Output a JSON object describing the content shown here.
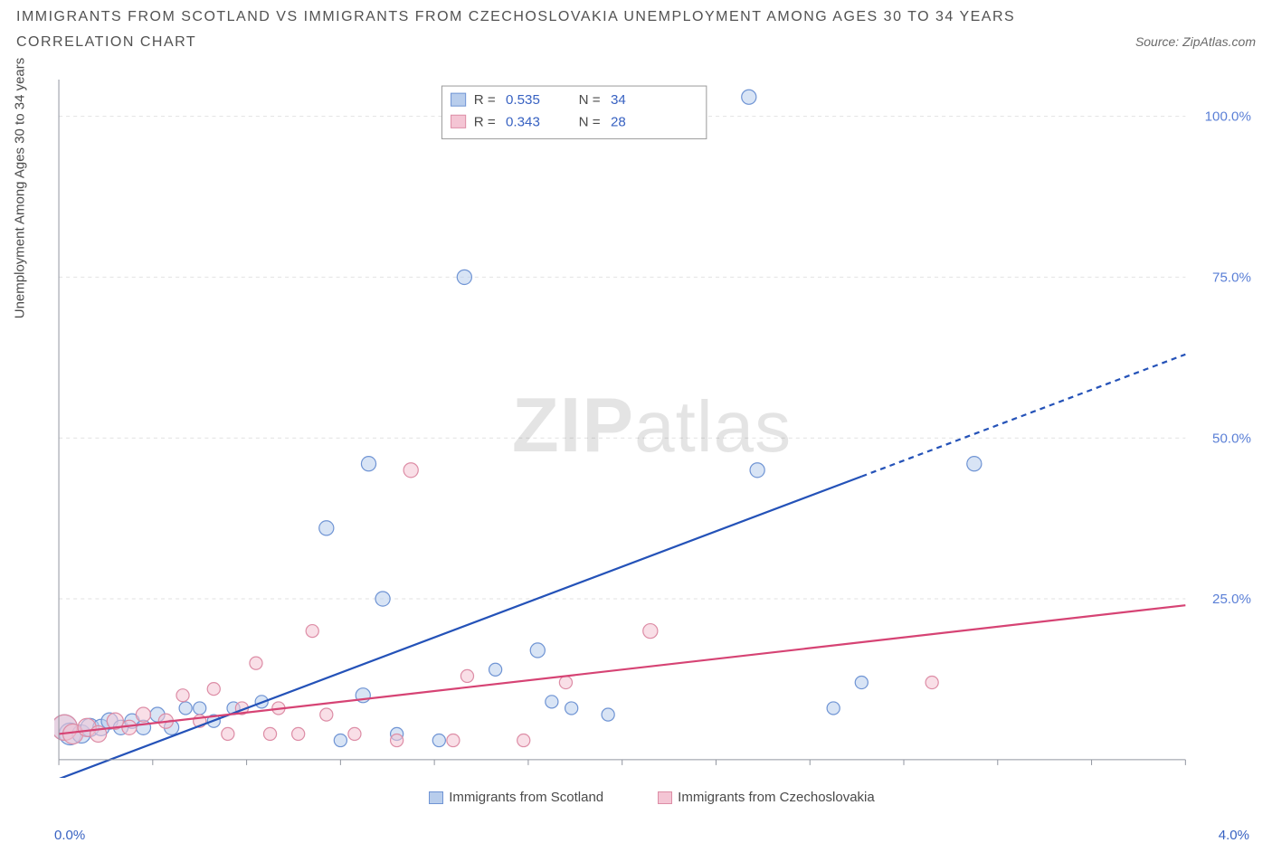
{
  "title": "IMMIGRANTS FROM SCOTLAND VS IMMIGRANTS FROM CZECHOSLOVAKIA UNEMPLOYMENT AMONG AGES 30 TO 34 YEARS",
  "subtitle": "CORRELATION CHART",
  "source": "Source: ZipAtlas.com",
  "y_axis_label": "Unemployment Among Ages 30 to 34 years",
  "watermark_zip": "ZIP",
  "watermark_atlas": "atlas",
  "chart": {
    "type": "scatter",
    "background_color": "#ffffff",
    "grid_color": "#e2e2e2",
    "axis_color": "#9296a0",
    "tick_color": "#9296a0",
    "x_min": 0.0,
    "x_max": 4.0,
    "x_label_min": "0.0%",
    "x_label_max": "4.0%",
    "x_label_color": "#3862c2",
    "y_min": 0,
    "y_max": 105,
    "y_ticks": [
      25,
      50,
      75,
      100
    ],
    "y_tick_labels": [
      "25.0%",
      "50.0%",
      "75.0%",
      "100.0%"
    ],
    "y_tick_color": "#5a7fd6",
    "inner_legend": {
      "border_color": "#9a9a9a",
      "bg": "#ffffff",
      "rows": [
        {
          "swatch_fill": "#b8cdec",
          "swatch_stroke": "#6f94d4",
          "r_label": "R = ",
          "r_val": "0.535",
          "n_label": "N = ",
          "n_val": "34"
        },
        {
          "swatch_fill": "#f4c5d4",
          "swatch_stroke": "#dd8da6",
          "r_label": "R = ",
          "r_val": "0.343",
          "n_label": "N = ",
          "n_val": "28"
        }
      ],
      "label_color": "#4a4a4a",
      "value_color": "#3862c2"
    },
    "series": [
      {
        "name": "Immigrants from Scotland",
        "fill": "#b8cdec",
        "stroke": "#6f94d4",
        "fill_opacity": 0.55,
        "marker_r": 8,
        "trend": {
          "stroke": "#2452b8",
          "width": 2.2,
          "y_at_xmin": -3,
          "y_at_xmax": 63,
          "solid_until_x": 2.85
        },
        "points": [
          {
            "x": 0.02,
            "y": 5,
            "r": 14
          },
          {
            "x": 0.04,
            "y": 4,
            "r": 12
          },
          {
            "x": 0.08,
            "y": 4,
            "r": 10
          },
          {
            "x": 0.11,
            "y": 5,
            "r": 10
          },
          {
            "x": 0.15,
            "y": 5,
            "r": 9
          },
          {
            "x": 0.18,
            "y": 6,
            "r": 9
          },
          {
            "x": 0.22,
            "y": 5,
            "r": 8
          },
          {
            "x": 0.26,
            "y": 6,
            "r": 8
          },
          {
            "x": 0.3,
            "y": 5,
            "r": 8
          },
          {
            "x": 0.35,
            "y": 7,
            "r": 8
          },
          {
            "x": 0.4,
            "y": 5,
            "r": 8
          },
          {
            "x": 0.45,
            "y": 8,
            "r": 7
          },
          {
            "x": 0.5,
            "y": 8,
            "r": 7
          },
          {
            "x": 0.55,
            "y": 6,
            "r": 7
          },
          {
            "x": 0.62,
            "y": 8,
            "r": 7
          },
          {
            "x": 0.72,
            "y": 9,
            "r": 7
          },
          {
            "x": 0.95,
            "y": 36,
            "r": 8
          },
          {
            "x": 1.0,
            "y": 3,
            "r": 7
          },
          {
            "x": 1.08,
            "y": 10,
            "r": 8
          },
          {
            "x": 1.1,
            "y": 46,
            "r": 8
          },
          {
            "x": 1.15,
            "y": 25,
            "r": 8
          },
          {
            "x": 1.2,
            "y": 4,
            "r": 7
          },
          {
            "x": 1.35,
            "y": 3,
            "r": 7
          },
          {
            "x": 1.44,
            "y": 75,
            "r": 8
          },
          {
            "x": 1.55,
            "y": 14,
            "r": 7
          },
          {
            "x": 1.7,
            "y": 17,
            "r": 8
          },
          {
            "x": 1.75,
            "y": 9,
            "r": 7
          },
          {
            "x": 1.82,
            "y": 8,
            "r": 7
          },
          {
            "x": 1.95,
            "y": 7,
            "r": 7
          },
          {
            "x": 2.45,
            "y": 103,
            "r": 8
          },
          {
            "x": 2.48,
            "y": 45,
            "r": 8
          },
          {
            "x": 2.75,
            "y": 8,
            "r": 7
          },
          {
            "x": 2.85,
            "y": 12,
            "r": 7
          },
          {
            "x": 3.25,
            "y": 46,
            "r": 8
          }
        ]
      },
      {
        "name": "Immigrants from Czechoslovakia",
        "fill": "#f4c5d4",
        "stroke": "#dd8da6",
        "fill_opacity": 0.55,
        "marker_r": 8,
        "trend": {
          "stroke": "#d64374",
          "width": 2.2,
          "y_at_xmin": 4,
          "y_at_xmax": 24,
          "solid_until_x": 4.0
        },
        "points": [
          {
            "x": 0.02,
            "y": 5,
            "r": 14
          },
          {
            "x": 0.05,
            "y": 4,
            "r": 11
          },
          {
            "x": 0.1,
            "y": 5,
            "r": 10
          },
          {
            "x": 0.14,
            "y": 4,
            "r": 9
          },
          {
            "x": 0.2,
            "y": 6,
            "r": 9
          },
          {
            "x": 0.25,
            "y": 5,
            "r": 8
          },
          {
            "x": 0.3,
            "y": 7,
            "r": 8
          },
          {
            "x": 0.38,
            "y": 6,
            "r": 8
          },
          {
            "x": 0.44,
            "y": 10,
            "r": 7
          },
          {
            "x": 0.5,
            "y": 6,
            "r": 7
          },
          {
            "x": 0.55,
            "y": 11,
            "r": 7
          },
          {
            "x": 0.6,
            "y": 4,
            "r": 7
          },
          {
            "x": 0.65,
            "y": 8,
            "r": 7
          },
          {
            "x": 0.7,
            "y": 15,
            "r": 7
          },
          {
            "x": 0.75,
            "y": 4,
            "r": 7
          },
          {
            "x": 0.78,
            "y": 8,
            "r": 7
          },
          {
            "x": 0.85,
            "y": 4,
            "r": 7
          },
          {
            "x": 0.9,
            "y": 20,
            "r": 7
          },
          {
            "x": 0.95,
            "y": 7,
            "r": 7
          },
          {
            "x": 1.05,
            "y": 4,
            "r": 7
          },
          {
            "x": 1.2,
            "y": 3,
            "r": 7
          },
          {
            "x": 1.25,
            "y": 45,
            "r": 8
          },
          {
            "x": 1.4,
            "y": 3,
            "r": 7
          },
          {
            "x": 1.45,
            "y": 13,
            "r": 7
          },
          {
            "x": 1.65,
            "y": 3,
            "r": 7
          },
          {
            "x": 1.8,
            "y": 12,
            "r": 7
          },
          {
            "x": 2.1,
            "y": 20,
            "r": 8
          },
          {
            "x": 3.1,
            "y": 12,
            "r": 7
          }
        ]
      }
    ]
  },
  "bottom_legend": [
    {
      "swatch_fill": "#b8cdec",
      "swatch_stroke": "#6f94d4",
      "label": "Immigrants from Scotland"
    },
    {
      "swatch_fill": "#f4c5d4",
      "swatch_stroke": "#dd8da6",
      "label": "Immigrants from Czechoslovakia"
    }
  ]
}
